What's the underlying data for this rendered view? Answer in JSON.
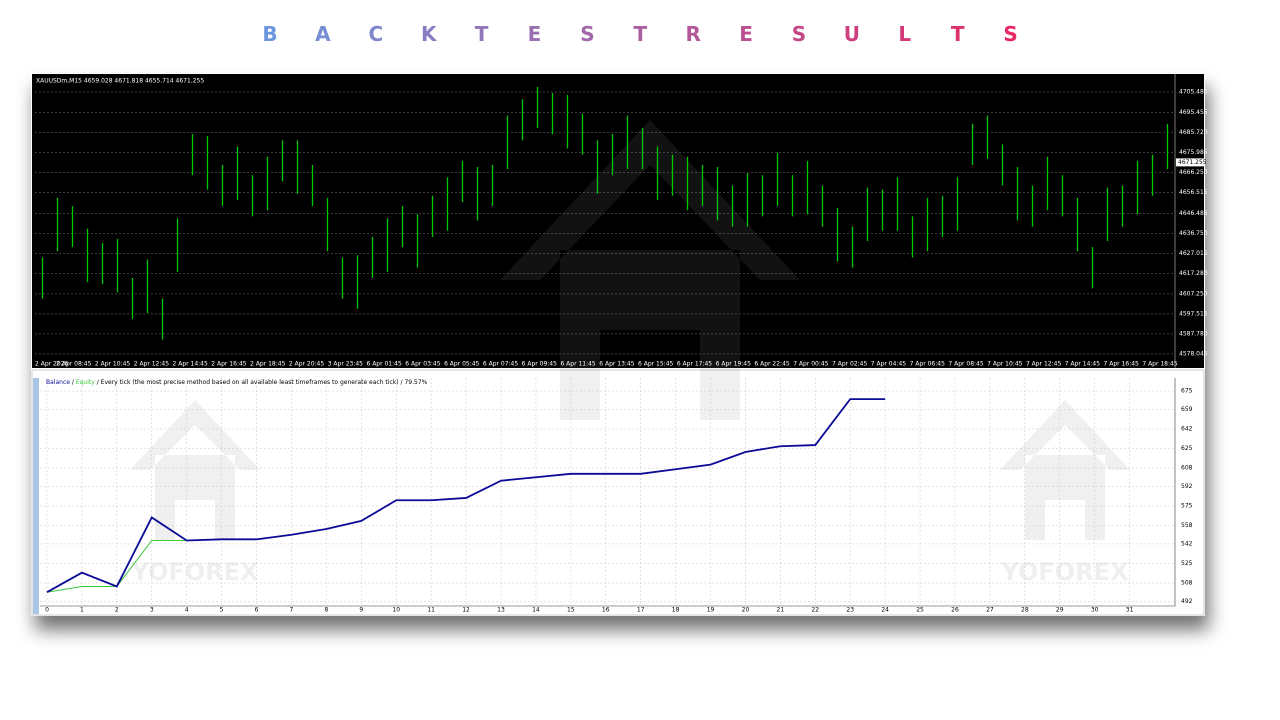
{
  "title": "BACKTEST RESULTS",
  "watermark": "YOFOREX",
  "chart_data": [
    {
      "type": "range",
      "header": "XAUUSDm,M15  4659.028 4671.818 4655.714 4671.255",
      "color": "#00c800",
      "last_price": 4671.255,
      "x_labels": [
        "2 Apr 2026",
        "2 Apr 08:45",
        "2 Apr 10:45",
        "2 Apr 12:45",
        "2 Apr 14:45",
        "2 Apr 16:45",
        "2 Apr 18:45",
        "2 Apr 20:45",
        "3 Apr 23:45",
        "6 Apr 01:45",
        "6 Apr 03:45",
        "6 Apr 05:45",
        "6 Apr 07:45",
        "6 Apr 09:45",
        "6 Apr 11:45",
        "6 Apr 13:45",
        "6 Apr 15:45",
        "6 Apr 17:45",
        "6 Apr 19:45",
        "6 Apr 22:45",
        "7 Apr 00:45",
        "7 Apr 02:45",
        "7 Apr 04:45",
        "7 Apr 06:45",
        "7 Apr 08:45",
        "7 Apr 10:45",
        "7 Apr 12:45",
        "7 Apr 14:45",
        "7 Apr 16:45",
        "7 Apr 18:45"
      ],
      "ylim": [
        4575.1,
        4712.8
      ],
      "yticks": [
        4705.485,
        4695.455,
        {
          "value": 4685.72,
          "label": "4685.720"
        },
        4675.985,
        {
          "value": 4666.25,
          "label": "4666.250"
        },
        4656.515,
        4646.485,
        {
          "value": 4636.75,
          "label": "4636.750"
        },
        4627.015,
        {
          "value": 4617.28,
          "label": "4617.280"
        },
        {
          "value": 4607.25,
          "label": "4607.250"
        },
        4597.515,
        {
          "value": 4587.78,
          "label": "4587.780"
        },
        4578.045
      ],
      "grid": true,
      "high": [
        4625,
        4654,
        4650,
        4639,
        4632,
        4634,
        4615,
        4624,
        4605,
        4644,
        4685,
        4684,
        4670,
        4679,
        4665,
        4674,
        4682,
        4682,
        4670,
        4654,
        4625,
        4626,
        4635,
        4644,
        4650,
        4646,
        4655,
        4664,
        4672,
        4669,
        4670,
        4694,
        4702,
        4708,
        4705,
        4704,
        4695,
        4682,
        4685,
        4694,
        4688,
        4679,
        4675,
        4674,
        4670,
        4669,
        4660,
        4666,
        4665,
        4676,
        4665,
        4672,
        4660,
        4649,
        4640,
        4659,
        4658,
        4664,
        4645,
        4654,
        4655,
        4664,
        4690,
        4694,
        4680,
        4669,
        4660,
        4674,
        4665,
        4654,
        4630,
        4659,
        4660,
        4672,
        4675,
        4690
      ],
      "low": [
        4605,
        4628,
        4630,
        4613,
        4612,
        4608,
        4595,
        4598,
        4585,
        4618,
        4665,
        4658,
        4650,
        4653,
        4645,
        4648,
        4662,
        4656,
        4650,
        4628,
        4605,
        4600,
        4615,
        4618,
        4630,
        4620,
        4635,
        4638,
        4652,
        4643,
        4650,
        4668,
        4682,
        4688,
        4685,
        4678,
        4675,
        4656,
        4665,
        4668,
        4668,
        4653,
        4655,
        4648,
        4650,
        4643,
        4640,
        4640,
        4645,
        4650,
        4645,
        4646,
        4640,
        4623,
        4620,
        4633,
        4638,
        4638,
        4625,
        4628,
        4635,
        4638,
        4670,
        4673,
        4660,
        4643,
        4640,
        4648,
        4645,
        4628,
        4610,
        4633,
        4640,
        4646,
        4655,
        4668
      ]
    },
    {
      "type": "line",
      "separator": "/",
      "header": "Every tick (the most precise method based on all available least timeframes to generate each tick)",
      "quality": "79.57%",
      "xlim": [
        -0.2,
        32.3
      ],
      "xticks": [
        0,
        1,
        2,
        3,
        4,
        5,
        6,
        7,
        8,
        9,
        10,
        11,
        12,
        13,
        14,
        15,
        16,
        17,
        18,
        19,
        20,
        21,
        22,
        23,
        24,
        25,
        26,
        27,
        28,
        29,
        30,
        31
      ],
      "ylim": [
        488,
        682
      ],
      "yticks": [
        492,
        508,
        525,
        542,
        558,
        575,
        592,
        608,
        625,
        642,
        659,
        675
      ],
      "grid": true,
      "x": [
        0,
        1,
        2,
        3,
        4,
        5,
        6,
        7,
        8,
        9,
        10,
        11,
        12,
        13,
        14,
        15,
        16,
        17,
        18,
        19,
        20,
        21,
        22,
        23,
        24
      ],
      "series": [
        {
          "name": "Equity",
          "color": "#3cc83c",
          "values": [
            500,
            505,
            505,
            545,
            545,
            546,
            546,
            550,
            555,
            562,
            580,
            580,
            582,
            597,
            600,
            603,
            603,
            603,
            607,
            611,
            622,
            627,
            628,
            668,
            668
          ]
        },
        {
          "name": "Balance",
          "color": "#0a0a96",
          "values": [
            500,
            517,
            505,
            565,
            545,
            546,
            546,
            550,
            555,
            562,
            580,
            580,
            582,
            597,
            600,
            603,
            603,
            603,
            607,
            611,
            622,
            627,
            628,
            668,
            668
          ]
        }
      ]
    }
  ]
}
